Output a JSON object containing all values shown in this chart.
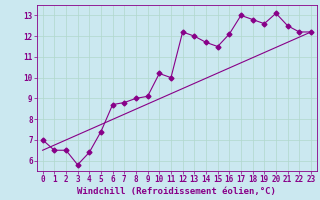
{
  "xlabel": "Windchill (Refroidissement éolien,°C)",
  "ylabel": "",
  "background_color": "#cbe8f0",
  "grid_color": "#b0d8cc",
  "line_color": "#880088",
  "x_data": [
    0,
    1,
    2,
    3,
    4,
    5,
    6,
    7,
    8,
    9,
    10,
    11,
    12,
    13,
    14,
    15,
    16,
    17,
    18,
    19,
    20,
    21,
    22,
    23
  ],
  "y_data": [
    7.0,
    6.5,
    6.5,
    5.8,
    6.4,
    7.4,
    8.7,
    8.8,
    9.0,
    9.1,
    10.2,
    10.0,
    12.2,
    12.0,
    11.7,
    11.5,
    12.1,
    13.0,
    12.8,
    12.6,
    13.1,
    12.5,
    12.2,
    12.2
  ],
  "trend_x": [
    0,
    23
  ],
  "trend_y": [
    6.5,
    12.2
  ],
  "xlim": [
    -0.5,
    23.5
  ],
  "ylim": [
    5.5,
    13.5
  ],
  "yticks": [
    6,
    7,
    8,
    9,
    10,
    11,
    12,
    13
  ],
  "xticks": [
    0,
    1,
    2,
    3,
    4,
    5,
    6,
    7,
    8,
    9,
    10,
    11,
    12,
    13,
    14,
    15,
    16,
    17,
    18,
    19,
    20,
    21,
    22,
    23
  ],
  "tick_fontsize": 5.5,
  "xlabel_fontsize": 6.5,
  "line_width": 0.8,
  "marker_size": 2.5
}
